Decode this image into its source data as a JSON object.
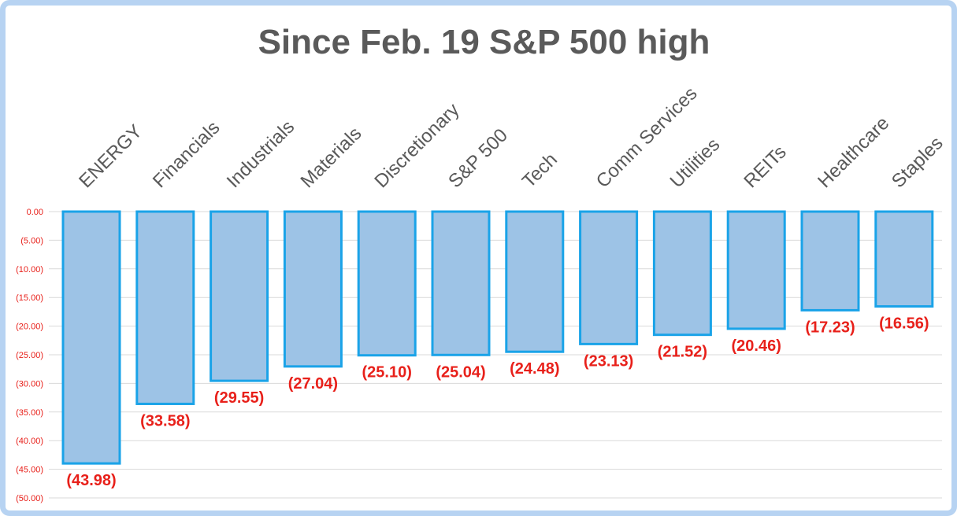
{
  "chart_data": {
    "type": "bar",
    "title": "Since Feb. 19 S&P 500 high",
    "xlabel": "",
    "ylabel": "",
    "categories": [
      "ENERGY",
      "Financials",
      "Industrials",
      "Materials",
      "Discretionary",
      "S&P 500",
      "Tech",
      "Comm Services",
      "Utilities",
      "REITs",
      "Healthcare",
      "Staples"
    ],
    "values": [
      -43.98,
      -33.58,
      -29.55,
      -27.04,
      -25.1,
      -25.04,
      -24.48,
      -23.13,
      -21.52,
      -20.46,
      -17.23,
      -16.56
    ],
    "data_labels": [
      "(43.98)",
      "(33.58)",
      "(29.55)",
      "(27.04)",
      "(25.10)",
      "(25.04)",
      "(24.48)",
      "(23.13)",
      "(21.52)",
      "(20.46)",
      "(17.23)",
      "(16.56)"
    ],
    "ylim": [
      -50,
      0
    ],
    "yticks": [
      0,
      -5,
      -10,
      -15,
      -20,
      -25,
      -30,
      -35,
      -40,
      -45,
      -50
    ],
    "ytick_labels": [
      "0.00",
      "(5.00)",
      "(10.00)",
      "(15.00)",
      "(20.00)",
      "(25.00)",
      "(30.00)",
      "(35.00)",
      "(40.00)",
      "(45.00)",
      "(50.00)"
    ],
    "grid": true,
    "colors": {
      "bar_fill": "#9dc3e6",
      "bar_stroke": "#1aa3e8",
      "label_red": "#e8201a",
      "grid": "#d9d9d9",
      "title": "#5a5a5a"
    }
  }
}
